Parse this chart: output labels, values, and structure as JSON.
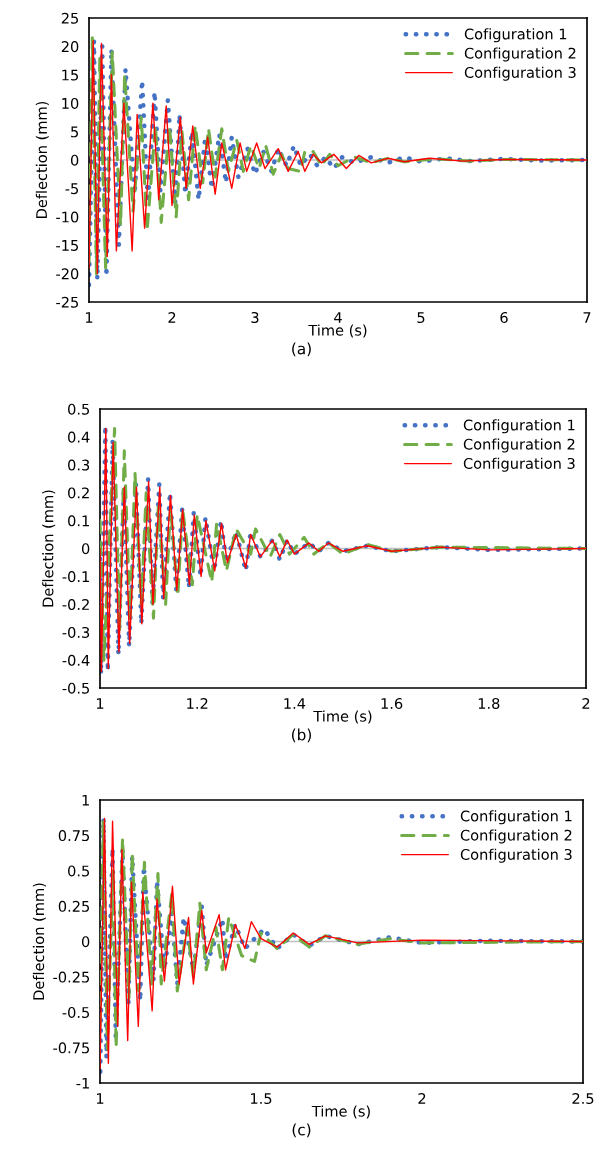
{
  "chart_data": [
    {
      "type": "line",
      "xlabel": "Time (s)",
      "ylabel": "Deflection (mm)",
      "annotations": [
        "(a)"
      ],
      "xlim": [
        1,
        7
      ],
      "xticks": [
        1,
        2,
        3,
        4,
        5,
        6,
        7
      ],
      "ylim": [
        -25,
        25
      ],
      "yticks": [
        -25,
        -20,
        -15,
        -10,
        -5,
        0,
        5,
        10,
        15,
        20,
        25
      ],
      "legend": "top right",
      "ref_lines": [
        {
          "axis": "y",
          "value": 0,
          "color": "#bfbfbf"
        }
      ],
      "series": [
        {
          "name": "Cofiguration 1",
          "color": "#4472c4",
          "line_style": "dotted",
          "x": [
            1.0,
            1.06,
            1.1,
            1.16,
            1.21,
            1.27,
            1.36,
            1.44,
            1.55,
            1.64,
            1.71,
            1.79,
            1.86,
            1.95,
            2.04,
            2.09,
            2.16,
            2.24,
            2.32,
            2.4,
            2.48,
            2.57,
            2.65,
            2.72,
            2.8,
            2.91,
            3.0,
            3.1,
            3.2,
            3.28,
            3.38,
            3.47,
            3.55,
            3.66,
            3.75,
            3.85,
            3.95,
            4.05,
            4.2,
            4.4,
            4.6,
            4.8,
            5.0,
            5.3,
            5.6,
            6.0,
            6.4,
            7.0
          ],
          "values": [
            -22,
            21,
            -21,
            20,
            -20.5,
            19.5,
            -15,
            16,
            -6,
            14,
            -7.5,
            12,
            -5.5,
            10.5,
            -7.5,
            8,
            -6,
            5,
            -7,
            4,
            -5,
            4.5,
            -4,
            4,
            -3,
            2,
            -2.5,
            1.5,
            -2,
            2,
            -1,
            2.5,
            -1,
            1,
            -1,
            0.5,
            -1.5,
            0.5,
            -0.5,
            0.5,
            -0.5,
            0.5,
            -0.3,
            0.3,
            -0.2,
            0.2,
            -0.1,
            0
          ]
        },
        {
          "name": "Configuration 2",
          "color": "#70ad47",
          "line_style": "dashed",
          "x": [
            1.0,
            1.04,
            1.09,
            1.13,
            1.2,
            1.28,
            1.38,
            1.43,
            1.53,
            1.63,
            1.7,
            1.8,
            1.87,
            1.97,
            2.05,
            2.12,
            2.2,
            2.28,
            2.37,
            2.44,
            2.52,
            2.6,
            2.68,
            2.78,
            2.86,
            2.95,
            3.05,
            3.13,
            3.22,
            3.32,
            3.4,
            3.55,
            3.6,
            3.7,
            3.8,
            3.9,
            4.0,
            4.2,
            4.4,
            4.6,
            4.8,
            5.2,
            5.6,
            6.0,
            7.0
          ],
          "values": [
            -18,
            21.5,
            -20,
            18,
            -19,
            19,
            -11.5,
            15,
            -9,
            7.5,
            -12.5,
            6,
            -11,
            6,
            -10,
            5,
            -7,
            6,
            -4,
            5.5,
            -3,
            5.5,
            -2,
            3.5,
            -2,
            2.5,
            -1.5,
            2.5,
            -2.5,
            1,
            -1.5,
            -2,
            1.5,
            1.5,
            -1,
            1,
            -1,
            0.5,
            -0.5,
            0.3,
            -0.3,
            0.2,
            -0.2,
            0.1,
            0
          ]
        },
        {
          "name": "Configuration 3",
          "color": "#ff0000",
          "line_style": "solid",
          "x": [
            1.0,
            1.05,
            1.1,
            1.15,
            1.22,
            1.27,
            1.33,
            1.42,
            1.52,
            1.58,
            1.67,
            1.77,
            1.84,
            1.93,
            2.0,
            2.1,
            2.17,
            2.25,
            2.34,
            2.43,
            2.52,
            2.6,
            2.72,
            2.82,
            2.9,
            3.02,
            3.12,
            3.28,
            3.4,
            3.52,
            3.6,
            3.7,
            3.8,
            3.95,
            4.1,
            4.25,
            4.4,
            4.6,
            4.8,
            5.1,
            5.5,
            6.0,
            7.0
          ],
          "values": [
            -19,
            21,
            -20,
            20.5,
            -17,
            15,
            -16,
            10,
            -16,
            8,
            -12,
            10,
            -7,
            9.5,
            -8,
            7.5,
            -5,
            6,
            -5,
            4,
            -6,
            3,
            -5,
            3,
            -2,
            3,
            -1.5,
            2,
            -2,
            1.5,
            -2,
            1,
            -0.5,
            1,
            -1.5,
            0.8,
            -0.5,
            0.3,
            -0.3,
            0.3,
            -0.2,
            0.1,
            0
          ]
        }
      ]
    },
    {
      "type": "line",
      "xlabel": "Time (s)",
      "ylabel": "Deflection (mm)",
      "annotations": [
        "(b)"
      ],
      "xlim": [
        1,
        2
      ],
      "xticks": [
        1,
        1.2,
        1.4,
        1.6,
        1.8,
        2
      ],
      "ylim": [
        -0.5,
        0.5
      ],
      "yticks": [
        -0.5,
        -0.4,
        -0.3,
        -0.2,
        -0.1,
        0,
        0.1,
        0.2,
        0.3,
        0.4,
        0.5
      ],
      "legend": "top right",
      "ref_lines": [
        {
          "axis": "y",
          "value": 0,
          "color": "#bfbfbf"
        }
      ],
      "series": [
        {
          "name": "Configuration 1",
          "color": "#4472c4",
          "line_style": "dotted",
          "x": [
            1.0,
            1.002,
            1.011,
            1.016,
            1.026,
            1.038,
            1.049,
            1.06,
            1.074,
            1.085,
            1.099,
            1.108,
            1.122,
            1.13,
            1.144,
            1.157,
            1.169,
            1.183,
            1.193,
            1.207,
            1.217,
            1.235,
            1.249,
            1.26,
            1.28,
            1.3,
            1.31,
            1.33,
            1.355,
            1.37,
            1.385,
            1.4,
            1.43,
            1.45,
            1.47,
            1.5,
            1.55,
            1.6,
            1.7,
            1.8,
            2.0
          ],
          "values": [
            0,
            -0.45,
            0.44,
            -0.44,
            0.39,
            -0.38,
            0.22,
            -0.35,
            0.23,
            -0.27,
            0.25,
            -0.2,
            0.23,
            -0.18,
            0.2,
            -0.15,
            0.14,
            -0.14,
            0.13,
            -0.1,
            0.11,
            -0.08,
            0.1,
            -0.05,
            0.06,
            -0.08,
            0.06,
            -0.03,
            0.03,
            -0.04,
            0.03,
            -0.02,
            0.02,
            -0.01,
            0.02,
            -0.01,
            0.01,
            -0.01,
            0.005,
            -0.005,
            0
          ]
        },
        {
          "name": "Configuration 2",
          "color": "#70ad47",
          "line_style": "dashed",
          "x": [
            1.0,
            1.008,
            1.03,
            1.04,
            1.05,
            1.062,
            1.072,
            1.085,
            1.095,
            1.11,
            1.12,
            1.135,
            1.145,
            1.16,
            1.17,
            1.19,
            1.2,
            1.23,
            1.24,
            1.26,
            1.28,
            1.31,
            1.32,
            1.35,
            1.37,
            1.39,
            1.42,
            1.44,
            1.47,
            1.5,
            1.55,
            1.6,
            1.7,
            2.0
          ],
          "values": [
            0.1,
            -0.4,
            0.43,
            -0.3,
            0.35,
            -0.25,
            0.27,
            -0.2,
            0.2,
            -0.25,
            0.15,
            -0.2,
            0.15,
            -0.17,
            0.14,
            -0.13,
            0.12,
            -0.12,
            0.09,
            -0.08,
            0.07,
            -0.02,
            0.07,
            -0.03,
            0.05,
            -0.02,
            0.04,
            -0.02,
            0.02,
            -0.02,
            0.015,
            -0.01,
            0.005,
            0
          ]
        },
        {
          "name": "Configuration 3",
          "color": "#ff0000",
          "line_style": "solid",
          "x": [
            1.0,
            1.003,
            1.012,
            1.017,
            1.027,
            1.039,
            1.05,
            1.061,
            1.075,
            1.086,
            1.1,
            1.109,
            1.123,
            1.131,
            1.145,
            1.158,
            1.17,
            1.184,
            1.194,
            1.208,
            1.218,
            1.236,
            1.25,
            1.262,
            1.28,
            1.3,
            1.31,
            1.33,
            1.355,
            1.37,
            1.385,
            1.4,
            1.43,
            1.45,
            1.47,
            1.5,
            1.55,
            1.6,
            1.7,
            1.8,
            2.0
          ],
          "values": [
            0,
            -0.44,
            0.43,
            -0.43,
            0.38,
            -0.37,
            0.22,
            -0.34,
            0.22,
            -0.27,
            0.24,
            -0.2,
            0.22,
            -0.18,
            0.19,
            -0.15,
            0.14,
            -0.13,
            0.12,
            -0.1,
            0.1,
            -0.08,
            0.09,
            -0.05,
            0.05,
            -0.07,
            0.05,
            -0.03,
            0.03,
            -0.03,
            0.03,
            -0.02,
            0.02,
            -0.01,
            0.02,
            -0.01,
            0.01,
            -0.01,
            0.005,
            -0.005,
            0
          ]
        }
      ]
    },
    {
      "type": "line",
      "xlabel": "Time (s)",
      "ylabel": "Deflection (mm)",
      "annotations": [
        "(c)"
      ],
      "xlim": [
        1,
        2.5
      ],
      "xticks": [
        1,
        1.5,
        2,
        2.5
      ],
      "ylim": [
        -1,
        1
      ],
      "yticks": [
        -1,
        -0.75,
        -0.5,
        -0.25,
        0,
        0.25,
        0.5,
        0.75,
        1
      ],
      "legend": "top right",
      "ref_lines": [
        {
          "axis": "y",
          "value": 0,
          "color": "#bfbfbf"
        }
      ],
      "series": [
        {
          "name": "Configuration 1",
          "color": "#4472c4",
          "line_style": "dotted",
          "x": [
            1.001,
            1.011,
            1.02,
            1.039,
            1.049,
            1.07,
            1.088,
            1.1,
            1.125,
            1.136,
            1.166,
            1.177,
            1.2,
            1.223,
            1.24,
            1.26,
            1.29,
            1.316,
            1.33,
            1.38,
            1.39,
            1.42,
            1.45,
            1.51,
            1.55,
            1.6,
            1.65,
            1.7,
            1.8,
            1.9,
            2.0,
            2.2,
            2.5
          ],
          "values": [
            -0.92,
            0.87,
            -0.82,
            0.66,
            -0.7,
            0.65,
            -0.46,
            0.6,
            -0.42,
            0.53,
            -0.28,
            0.43,
            -0.2,
            0.2,
            -0.3,
            0.17,
            -0.2,
            0.25,
            -0.17,
            0.16,
            -0.13,
            0.12,
            -0.05,
            0.09,
            -0.05,
            0.05,
            -0.03,
            0.04,
            -0.02,
            0.03,
            -0.01,
            0.005,
            0
          ]
        },
        {
          "name": "Configuration 2",
          "color": "#70ad47",
          "line_style": "dashed",
          "x": [
            1.0,
            1.01,
            1.023,
            1.04,
            1.05,
            1.07,
            1.09,
            1.1,
            1.12,
            1.138,
            1.16,
            1.18,
            1.19,
            1.223,
            1.24,
            1.27,
            1.29,
            1.31,
            1.33,
            1.36,
            1.38,
            1.4,
            1.44,
            1.48,
            1.5,
            1.55,
            1.6,
            1.65,
            1.7,
            1.8,
            1.9,
            2.0,
            2.5
          ],
          "values": [
            -0.6,
            0.85,
            -0.76,
            0.5,
            -0.75,
            0.73,
            -0.4,
            0.62,
            -0.35,
            0.56,
            -0.3,
            0.48,
            -0.3,
            0.34,
            -0.35,
            0.1,
            -0.25,
            0.27,
            -0.2,
            0.1,
            -0.2,
            0.17,
            -0.1,
            -0.14,
            0.06,
            -0.05,
            0.05,
            -0.04,
            0.04,
            -0.02,
            0.02,
            -0.01,
            0
          ]
        },
        {
          "name": "Configuration 3",
          "color": "#ff0000",
          "line_style": "solid",
          "x": [
            1.0,
            1.014,
            1.026,
            1.039,
            1.055,
            1.068,
            1.086,
            1.098,
            1.119,
            1.133,
            1.162,
            1.177,
            1.2,
            1.225,
            1.246,
            1.275,
            1.29,
            1.316,
            1.33,
            1.37,
            1.39,
            1.42,
            1.45,
            1.47,
            1.5,
            1.55,
            1.6,
            1.65,
            1.7,
            1.8,
            2.0,
            2.5
          ],
          "values": [
            -0.9,
            0.87,
            -0.86,
            0.85,
            -0.6,
            0.65,
            -0.7,
            0.42,
            -0.6,
            0.35,
            -0.49,
            0.3,
            -0.28,
            0.39,
            -0.3,
            0.17,
            -0.3,
            0.22,
            -0.08,
            0.19,
            -0.2,
            0.12,
            -0.05,
            0.14,
            0.02,
            -0.04,
            0.06,
            -0.02,
            0.04,
            -0.01,
            0.01,
            0
          ]
        }
      ]
    }
  ]
}
